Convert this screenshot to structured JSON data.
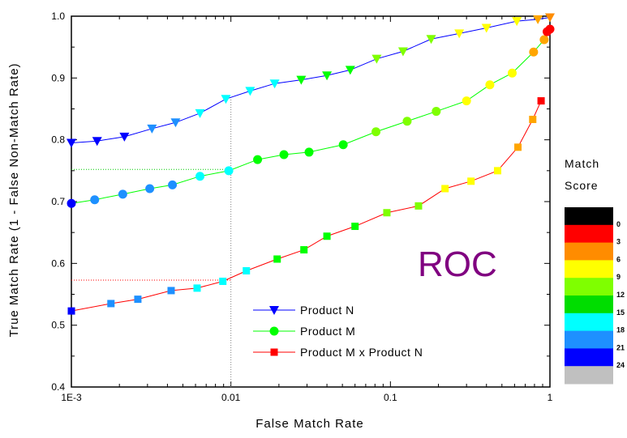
{
  "chart_data": {
    "type": "line",
    "xlabel": "False Match Rate",
    "ylabel": "True Match Rate (1 - False Non-Match Rate)",
    "xscale": "log",
    "xlim": [
      0.001,
      1
    ],
    "ylim": [
      0.4,
      1.0
    ],
    "xticks": [
      0.001,
      0.01,
      0.1,
      1
    ],
    "xtick_labels": [
      "1E-3",
      "0.01",
      "0.1",
      "1"
    ],
    "yticks": [
      0.4,
      0.5,
      0.6,
      0.7,
      0.8,
      0.9,
      1.0
    ],
    "ytick_labels": [
      "0.4",
      "0.5",
      "0.6",
      "0.7",
      "0.8",
      "0.9",
      "1.0"
    ],
    "grid": false,
    "legend_position": "bottom-center",
    "annotation": "ROC",
    "guide_lines": [
      {
        "type": "vertical",
        "x": 0.01,
        "y_from": 0.4,
        "y_to": 0.868,
        "color": "#808080"
      },
      {
        "type": "horizontal",
        "y": 0.752,
        "x_from": 0.001,
        "x_to": 0.01,
        "color": "#00cc00"
      },
      {
        "type": "horizontal",
        "y": 0.573,
        "x_from": 0.001,
        "x_to": 0.01,
        "color": "#ff0000"
      }
    ],
    "series": [
      {
        "name": "Product N",
        "color": "#0000ff",
        "marker": "triangle-down",
        "x": [
          0.001,
          0.00145,
          0.00215,
          0.0032,
          0.0045,
          0.0064,
          0.0093,
          0.0132,
          0.0188,
          0.0276,
          0.04,
          0.056,
          0.082,
          0.12,
          0.18,
          0.27,
          0.4,
          0.62,
          0.84,
          1.0
        ],
        "y": [
          0.795,
          0.798,
          0.805,
          0.818,
          0.828,
          0.843,
          0.866,
          0.879,
          0.891,
          0.897,
          0.904,
          0.913,
          0.931,
          0.943,
          0.963,
          0.972,
          0.981,
          0.992,
          0.995,
          0.998
        ],
        "score_colors": [
          "#0000ff",
          "#0000ff",
          "#0000ff",
          "#1e90ff",
          "#1e90ff",
          "#00ffff",
          "#00ffff",
          "#00ffff",
          "#00ffff",
          "#00ff00",
          "#00ff00",
          "#00ff00",
          "#7fff00",
          "#7fff00",
          "#7fff00",
          "#ffff00",
          "#ffff00",
          "#ffff00",
          "#ffa500",
          "#ff8c00"
        ]
      },
      {
        "name": "Product M",
        "color": "#00ff00",
        "marker": "circle",
        "x": [
          0.001,
          0.0014,
          0.0021,
          0.0031,
          0.0043,
          0.0064,
          0.0097,
          0.0147,
          0.0215,
          0.0309,
          0.0506,
          0.0812,
          0.1273,
          0.1938,
          0.3,
          0.42,
          0.58,
          0.79,
          0.92,
          0.96,
          1.0
        ],
        "y": [
          0.697,
          0.703,
          0.712,
          0.721,
          0.727,
          0.741,
          0.75,
          0.768,
          0.776,
          0.78,
          0.792,
          0.813,
          0.83,
          0.846,
          0.863,
          0.889,
          0.908,
          0.942,
          0.962,
          0.975,
          0.979
        ],
        "score_colors": [
          "#0000ff",
          "#1e90ff",
          "#1e90ff",
          "#1e90ff",
          "#1e90ff",
          "#00ffff",
          "#00ffff",
          "#00ff00",
          "#00ff00",
          "#00ff00",
          "#00ff00",
          "#7fff00",
          "#7fff00",
          "#7fff00",
          "#ffff00",
          "#ffff00",
          "#ffff00",
          "#ffa500",
          "#ffa500",
          "#ff0000",
          "#ff0000"
        ]
      },
      {
        "name": "Product M x Product N",
        "color": "#ff0000",
        "marker": "square",
        "x": [
          0.001,
          0.00177,
          0.00261,
          0.00422,
          0.00614,
          0.0089,
          0.0125,
          0.0195,
          0.0287,
          0.04,
          0.06,
          0.095,
          0.15,
          0.22,
          0.32,
          0.47,
          0.63,
          0.78,
          0.88
        ],
        "y": [
          0.523,
          0.535,
          0.542,
          0.556,
          0.56,
          0.571,
          0.588,
          0.607,
          0.622,
          0.644,
          0.66,
          0.682,
          0.693,
          0.721,
          0.733,
          0.75,
          0.788,
          0.833,
          0.863
        ],
        "score_colors": [
          "#0000ff",
          "#1e90ff",
          "#1e90ff",
          "#1e90ff",
          "#00ffff",
          "#00ffff",
          "#00ffff",
          "#00ff00",
          "#00ff00",
          "#00ff00",
          "#00ff00",
          "#7fff00",
          "#7fff00",
          "#ffff00",
          "#ffff00",
          "#ffff00",
          "#ffa500",
          "#ffa500",
          "#ff0000"
        ]
      }
    ],
    "colorbar": {
      "title_line1": "Match",
      "title_line2": "Score",
      "bands": [
        {
          "color": "#000000",
          "label": "0"
        },
        {
          "color": "#ff0000",
          "label": "3"
        },
        {
          "color": "#ff8c00",
          "label": "6"
        },
        {
          "color": "#ffff00",
          "label": "9"
        },
        {
          "color": "#7fff00",
          "label": "12"
        },
        {
          "color": "#00dd00",
          "label": "15"
        },
        {
          "color": "#00ffff",
          "label": "18"
        },
        {
          "color": "#1e90ff",
          "label": "21"
        },
        {
          "color": "#0000ff",
          "label": "24"
        },
        {
          "color": "#c0c0c0",
          "label": ""
        }
      ]
    }
  }
}
